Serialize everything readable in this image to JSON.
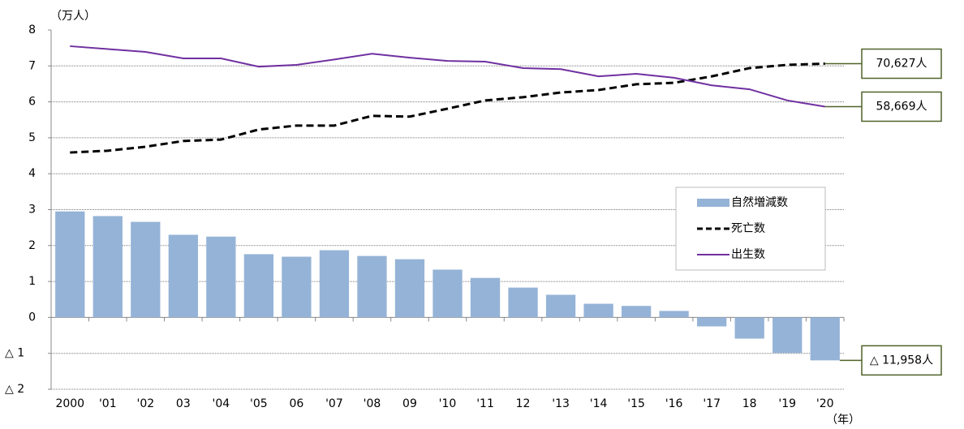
{
  "chart_data": {
    "type": "combo",
    "y_unit": "（万人）",
    "x_unit": "（年）",
    "categories": [
      "2000",
      "'01",
      "'02",
      "03",
      "'04",
      "'05",
      "06",
      "'07",
      "'08",
      "09",
      "'10",
      "'11",
      "12",
      "'13",
      "'14",
      "'15",
      "'16",
      "'17",
      "18",
      "'19",
      "'20"
    ],
    "ylim": [
      -2,
      8
    ],
    "yticks": [
      8,
      7,
      6,
      5,
      4,
      3,
      2,
      1,
      0,
      {
        "value": -1,
        "label": "△ 1"
      },
      {
        "value": -2,
        "label": "△ 2"
      }
    ],
    "grid": true,
    "series": [
      {
        "name": "自然増減数",
        "type": "bar",
        "color": "#95b3d7",
        "values": [
          2.95,
          2.82,
          2.66,
          2.3,
          2.25,
          1.76,
          1.69,
          1.87,
          1.71,
          1.62,
          1.33,
          1.1,
          0.83,
          0.63,
          0.38,
          0.32,
          0.18,
          -0.25,
          -0.59,
          -0.99,
          -1.1958
        ],
        "value_labels": [
          null,
          null,
          null,
          null,
          null,
          null,
          null,
          null,
          null,
          null,
          null,
          null,
          null,
          null,
          null,
          null,
          null,
          null,
          null,
          null,
          "△ 11,958人"
        ]
      },
      {
        "name": "死亡数",
        "type": "line",
        "dash": true,
        "color": "#000000",
        "values": [
          4.59,
          4.64,
          4.75,
          4.91,
          4.95,
          5.23,
          5.34,
          5.34,
          5.61,
          5.59,
          5.81,
          6.04,
          6.13,
          6.26,
          6.33,
          6.49,
          6.53,
          6.71,
          6.94,
          7.03,
          7.0627
        ],
        "value_labels": [
          null,
          null,
          null,
          null,
          null,
          null,
          null,
          null,
          null,
          null,
          null,
          null,
          null,
          null,
          null,
          null,
          null,
          null,
          null,
          null,
          "70,627人"
        ]
      },
      {
        "name": "出生数",
        "type": "line",
        "dash": false,
        "color": "#7030a0",
        "values": [
          7.55,
          7.47,
          7.39,
          7.21,
          7.21,
          6.98,
          7.03,
          7.18,
          7.34,
          7.23,
          7.14,
          7.12,
          6.94,
          6.91,
          6.71,
          6.78,
          6.67,
          6.46,
          6.35,
          6.04,
          5.8669
        ],
        "value_labels": [
          null,
          null,
          null,
          null,
          null,
          null,
          null,
          null,
          null,
          null,
          null,
          null,
          null,
          null,
          null,
          null,
          null,
          null,
          null,
          null,
          "58,669人"
        ]
      }
    ]
  }
}
